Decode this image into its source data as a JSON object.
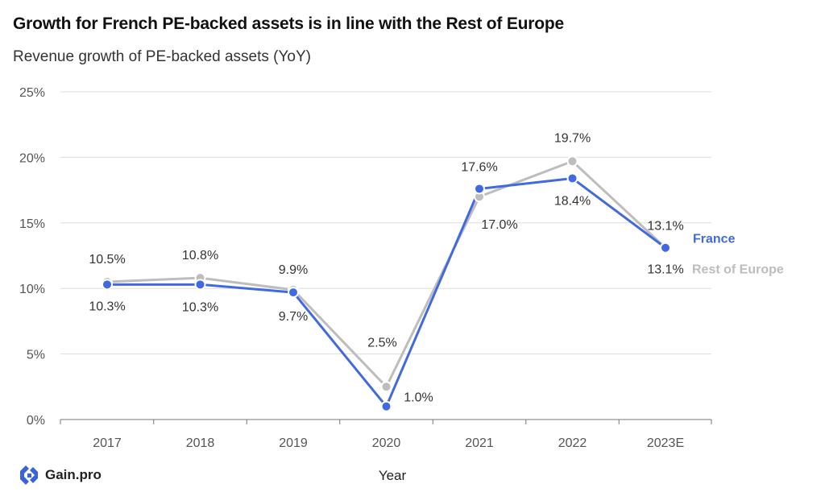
{
  "title": "Growth for French PE-backed assets is in line with the Rest of Europe",
  "subtitle": "Revenue growth of PE-backed assets (YoY)",
  "logo_text": "Gain.pro",
  "colors": {
    "france": "#4169e1",
    "rest_of_europe": "#bdbdbd",
    "grid": "#dddddd",
    "axis": "#777777"
  },
  "chart_data": {
    "type": "line",
    "title": "Growth for French PE-backed assets is in line with the Rest of Europe",
    "subtitle": "Revenue growth of PE-backed assets (YoY)",
    "xlabel": "Year",
    "ylabel": "",
    "categories": [
      "2017",
      "2018",
      "2019",
      "2020",
      "2021",
      "2022",
      "2023E"
    ],
    "ylim": [
      0,
      25
    ],
    "yticks": [
      0,
      5,
      10,
      15,
      20,
      25
    ],
    "ytick_labels": [
      "0%",
      "5%",
      "10%",
      "15%",
      "20%",
      "25%"
    ],
    "grid": true,
    "legend": "right",
    "series": [
      {
        "name": "France",
        "color": "#4169e1",
        "values": [
          10.3,
          10.3,
          9.7,
          1.0,
          17.6,
          18.4,
          13.1
        ],
        "labels": [
          "10.3%",
          "10.3%",
          "9.7%",
          "1.0%",
          "17.6%",
          "18.4%",
          "13.1%"
        ]
      },
      {
        "name": "Rest of Europe",
        "color": "#bdbdbd",
        "values": [
          10.5,
          10.8,
          9.9,
          2.5,
          17.0,
          19.7,
          13.1
        ],
        "labels": [
          "10.5%",
          "10.8%",
          "9.9%",
          "2.5%",
          "17.0%",
          "19.7%",
          "13.1%"
        ]
      }
    ]
  }
}
